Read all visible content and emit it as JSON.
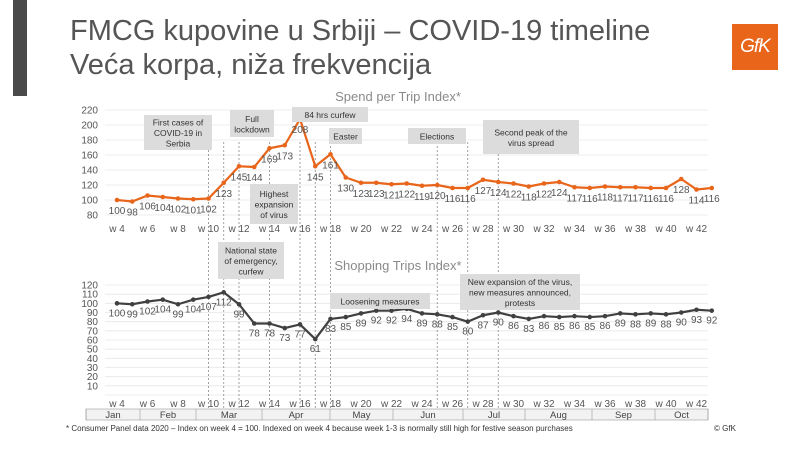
{
  "header": {
    "title_line1": "FMCG kupovine u Srbiji – COVID-19 timeline",
    "title_line2": "Veća korpa, niža frekvencija",
    "logo_text": "GfK"
  },
  "footnote": "* Consumer Panel data 2020 – Index on week 4 = 100. Indexed on week 4 because week 1-3 is normally still high for festive season purchases",
  "copyright": "© GfK",
  "colors": {
    "spend": "#e8651a",
    "trips": "#404040",
    "callout_bg": "#dcdcdc",
    "grid": "#e6e6e6"
  },
  "months": [
    "Jan",
    "Feb",
    "Mar",
    "Apr",
    "May",
    "Jun",
    "Jul",
    "Aug",
    "Sep",
    "Oct"
  ],
  "chart_data": [
    {
      "type": "line",
      "title": "Spend per Trip Index*",
      "x": [
        "w 4",
        "w 5",
        "w 6",
        "w 7",
        "w 8",
        "w 9",
        "w 10",
        "w 11",
        "w 12",
        "w 13",
        "w 14",
        "w 15",
        "w 16",
        "w 17",
        "w 18",
        "w 19",
        "w 20",
        "w 21",
        "w 22",
        "w 23",
        "w 24",
        "w 25",
        "w 26",
        "w 27",
        "w 28",
        "w 29",
        "w 30",
        "w 31",
        "w 32",
        "w 33",
        "w 34",
        "w 35",
        "w 36",
        "w 37",
        "w 38",
        "w 39",
        "w 40",
        "w 41",
        "w 42",
        "w 43"
      ],
      "x_tick_labels": [
        "w 4",
        "w 6",
        "w 8",
        "w 10",
        "w 12",
        "w 14",
        "w 16",
        "w 18",
        "w 20",
        "w 22",
        "w 24",
        "w 26",
        "w 28",
        "w 30",
        "w 32",
        "w 34",
        "w 36",
        "w 38",
        "w 40",
        "w 42"
      ],
      "series": [
        {
          "values": [
            100,
            98,
            106,
            104,
            102,
            101,
            102,
            123,
            145,
            144,
            169,
            173,
            208,
            145,
            161,
            130,
            123,
            123,
            121,
            122,
            119,
            120,
            116,
            116,
            127,
            124,
            122,
            118,
            122,
            124,
            117,
            116,
            118,
            117,
            117,
            116,
            116,
            128,
            114,
            116
          ]
        }
      ],
      "ylim": [
        80,
        220
      ],
      "yticks": [
        80,
        100,
        120,
        140,
        160,
        180,
        200,
        220
      ],
      "annotations": [
        {
          "text": [
            "First cases of",
            "COVID-19 in",
            "Serbia"
          ],
          "week": "w 10"
        },
        {
          "text": [
            "Full",
            "lockdown"
          ],
          "week": "w 13"
        },
        {
          "text": [
            "84 hrs curfew"
          ],
          "week": "w 16"
        },
        {
          "text": [
            "Highest",
            "expansion",
            "of virus"
          ],
          "week": "w 14"
        },
        {
          "text": [
            "Easter"
          ],
          "week": "w 17"
        },
        {
          "text": [
            "Elections"
          ],
          "week": "w 25"
        },
        {
          "text": [
            "Second peak of the",
            "virus spread"
          ],
          "week": "w 29"
        }
      ]
    },
    {
      "type": "line",
      "title": "Shopping Trips Index*",
      "x": [
        "w 4",
        "w 5",
        "w 6",
        "w 7",
        "w 8",
        "w 9",
        "w 10",
        "w 11",
        "w 12",
        "w 13",
        "w 14",
        "w 15",
        "w 16",
        "w 17",
        "w 18",
        "w 19",
        "w 20",
        "w 21",
        "w 22",
        "w 23",
        "w 24",
        "w 25",
        "w 26",
        "w 27",
        "w 28",
        "w 29",
        "w 30",
        "w 31",
        "w 32",
        "w 33",
        "w 34",
        "w 35",
        "w 36",
        "w 37",
        "w 38",
        "w 39",
        "w 40",
        "w 41",
        "w 42",
        "w 43"
      ],
      "x_tick_labels": [
        "w 4",
        "w 6",
        "w 8",
        "w 10",
        "w 12",
        "w 14",
        "w 16",
        "w 18",
        "w 20",
        "w 22",
        "w 24",
        "w 26",
        "w 28",
        "w 30",
        "w 32",
        "w 34",
        "w 36",
        "w 38",
        "w 40",
        "w 42"
      ],
      "series": [
        {
          "values": [
            100,
            99,
            102,
            104,
            99,
            104,
            107,
            112,
            99,
            78,
            78,
            73,
            77,
            61,
            83,
            85,
            89,
            92,
            92,
            94,
            89,
            88,
            85,
            80,
            87,
            90,
            86,
            83,
            86,
            85,
            86,
            85,
            86,
            89,
            88,
            89,
            88,
            90,
            93,
            92
          ]
        }
      ],
      "ylim": [
        0,
        120
      ],
      "yticks": [
        0,
        10,
        20,
        30,
        40,
        50,
        60,
        70,
        80,
        90,
        100,
        110,
        120
      ],
      "annotations": [
        {
          "text": [
            "National state",
            "of emergency,",
            "curfew"
          ],
          "week": "w 12"
        },
        {
          "text": [
            "Loosening measures"
          ],
          "week": "w 19"
        },
        {
          "text": [
            "New expansion of the virus,",
            "new measures announced,",
            "protests"
          ],
          "week": "w 28"
        }
      ]
    }
  ]
}
